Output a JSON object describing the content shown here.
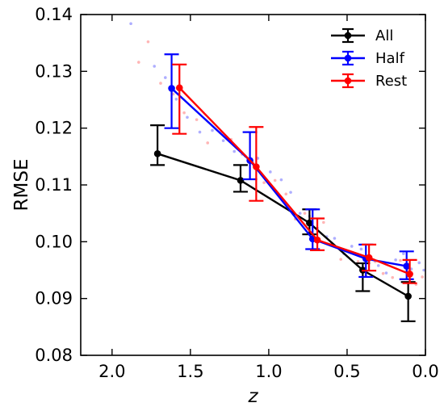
{
  "chart_data": {
    "type": "line",
    "xlabel": "z",
    "ylabel": "RMSE",
    "xlim": [
      2.2,
      0.0
    ],
    "ylim": [
      0.08,
      0.14
    ],
    "x_reversed": true,
    "xticks": [
      2.0,
      1.5,
      1.0,
      0.5,
      0.0
    ],
    "xtick_labels": [
      "2.0",
      "1.5",
      "1.0",
      "0.5",
      "0.0"
    ],
    "yticks": [
      0.08,
      0.09,
      0.1,
      0.11,
      0.12,
      0.13,
      0.14
    ],
    "ytick_labels": [
      "0.08",
      "0.09",
      "0.10",
      "0.11",
      "0.12",
      "0.13",
      "0.14"
    ],
    "grid": false,
    "legend_position": "top-right",
    "series": [
      {
        "name": "All",
        "color": "#000000",
        "x": [
          1.71,
          1.18,
          0.74,
          0.4,
          0.11
        ],
        "y": [
          0.1155,
          0.1108,
          0.1033,
          0.095,
          0.0904
        ],
        "err_low": [
          0.002,
          0.002,
          0.002,
          0.0037,
          0.0044
        ],
        "err_high": [
          0.005,
          0.0027,
          0.0024,
          0.0012,
          0.0025
        ]
      },
      {
        "name": "Half",
        "color": "#0000ff",
        "x": [
          1.62,
          1.12,
          0.72,
          0.38,
          0.12
        ],
        "y": [
          0.127,
          0.1143,
          0.1005,
          0.097,
          0.0957
        ],
        "err_low": [
          0.007,
          0.0033,
          0.0018,
          0.0032,
          0.0023
        ],
        "err_high": [
          0.006,
          0.005,
          0.0052,
          0.0025,
          0.0026
        ]
      },
      {
        "name": "Rest",
        "color": "#ff0000",
        "x": [
          1.57,
          1.08,
          0.69,
          0.36,
          0.1
        ],
        "y": [
          0.1271,
          0.1132,
          0.1003,
          0.0972,
          0.0943
        ],
        "err_low": [
          0.0081,
          0.006,
          0.0018,
          0.0023,
          0.0016
        ],
        "err_high": [
          0.0041,
          0.007,
          0.0038,
          0.0023,
          0.0025
        ]
      }
    ],
    "background_points": [
      {
        "color": "#8c8cff",
        "x": [
          1.88,
          1.73,
          1.66,
          1.59,
          1.52,
          1.44,
          1.36,
          1.29,
          1.22,
          1.15,
          1.07,
          0.99,
          0.92,
          0.86,
          0.8,
          0.74,
          0.69,
          0.63,
          0.58,
          0.52,
          0.47,
          0.41,
          0.36,
          0.3,
          0.25,
          0.19,
          0.14,
          0.09,
          0.04,
          0.01
        ],
        "y": [
          0.1384,
          0.1309,
          0.1289,
          0.1251,
          0.1219,
          0.1193,
          0.1196,
          0.1178,
          0.1159,
          0.1151,
          0.1147,
          0.1123,
          0.1109,
          0.1087,
          0.105,
          0.1045,
          0.1024,
          0.1009,
          0.1006,
          0.0979,
          0.0992,
          0.0987,
          0.0966,
          0.0958,
          0.0945,
          0.0968,
          0.0979,
          0.0952,
          0.0963,
          0.095
        ]
      },
      {
        "color": "#ff9696",
        "x": [
          1.83,
          1.77,
          1.69,
          1.61,
          1.54,
          1.46,
          1.39,
          1.31,
          1.24,
          1.17,
          1.1,
          1.03,
          0.96,
          0.89,
          0.83,
          0.77,
          0.71,
          0.65,
          0.6,
          0.54,
          0.49,
          0.43,
          0.38,
          0.32,
          0.27,
          0.21,
          0.16,
          0.11,
          0.06,
          0.02
        ],
        "y": [
          0.1316,
          0.1352,
          0.1279,
          0.126,
          0.1227,
          0.1215,
          0.1174,
          0.1192,
          0.118,
          0.1154,
          0.1139,
          0.1104,
          0.1108,
          0.1084,
          0.104,
          0.105,
          0.1005,
          0.1034,
          0.0996,
          0.0969,
          0.0983,
          0.0965,
          0.0939,
          0.0965,
          0.0944,
          0.0937,
          0.0967,
          0.0949,
          0.0925,
          0.0938
        ]
      }
    ]
  }
}
